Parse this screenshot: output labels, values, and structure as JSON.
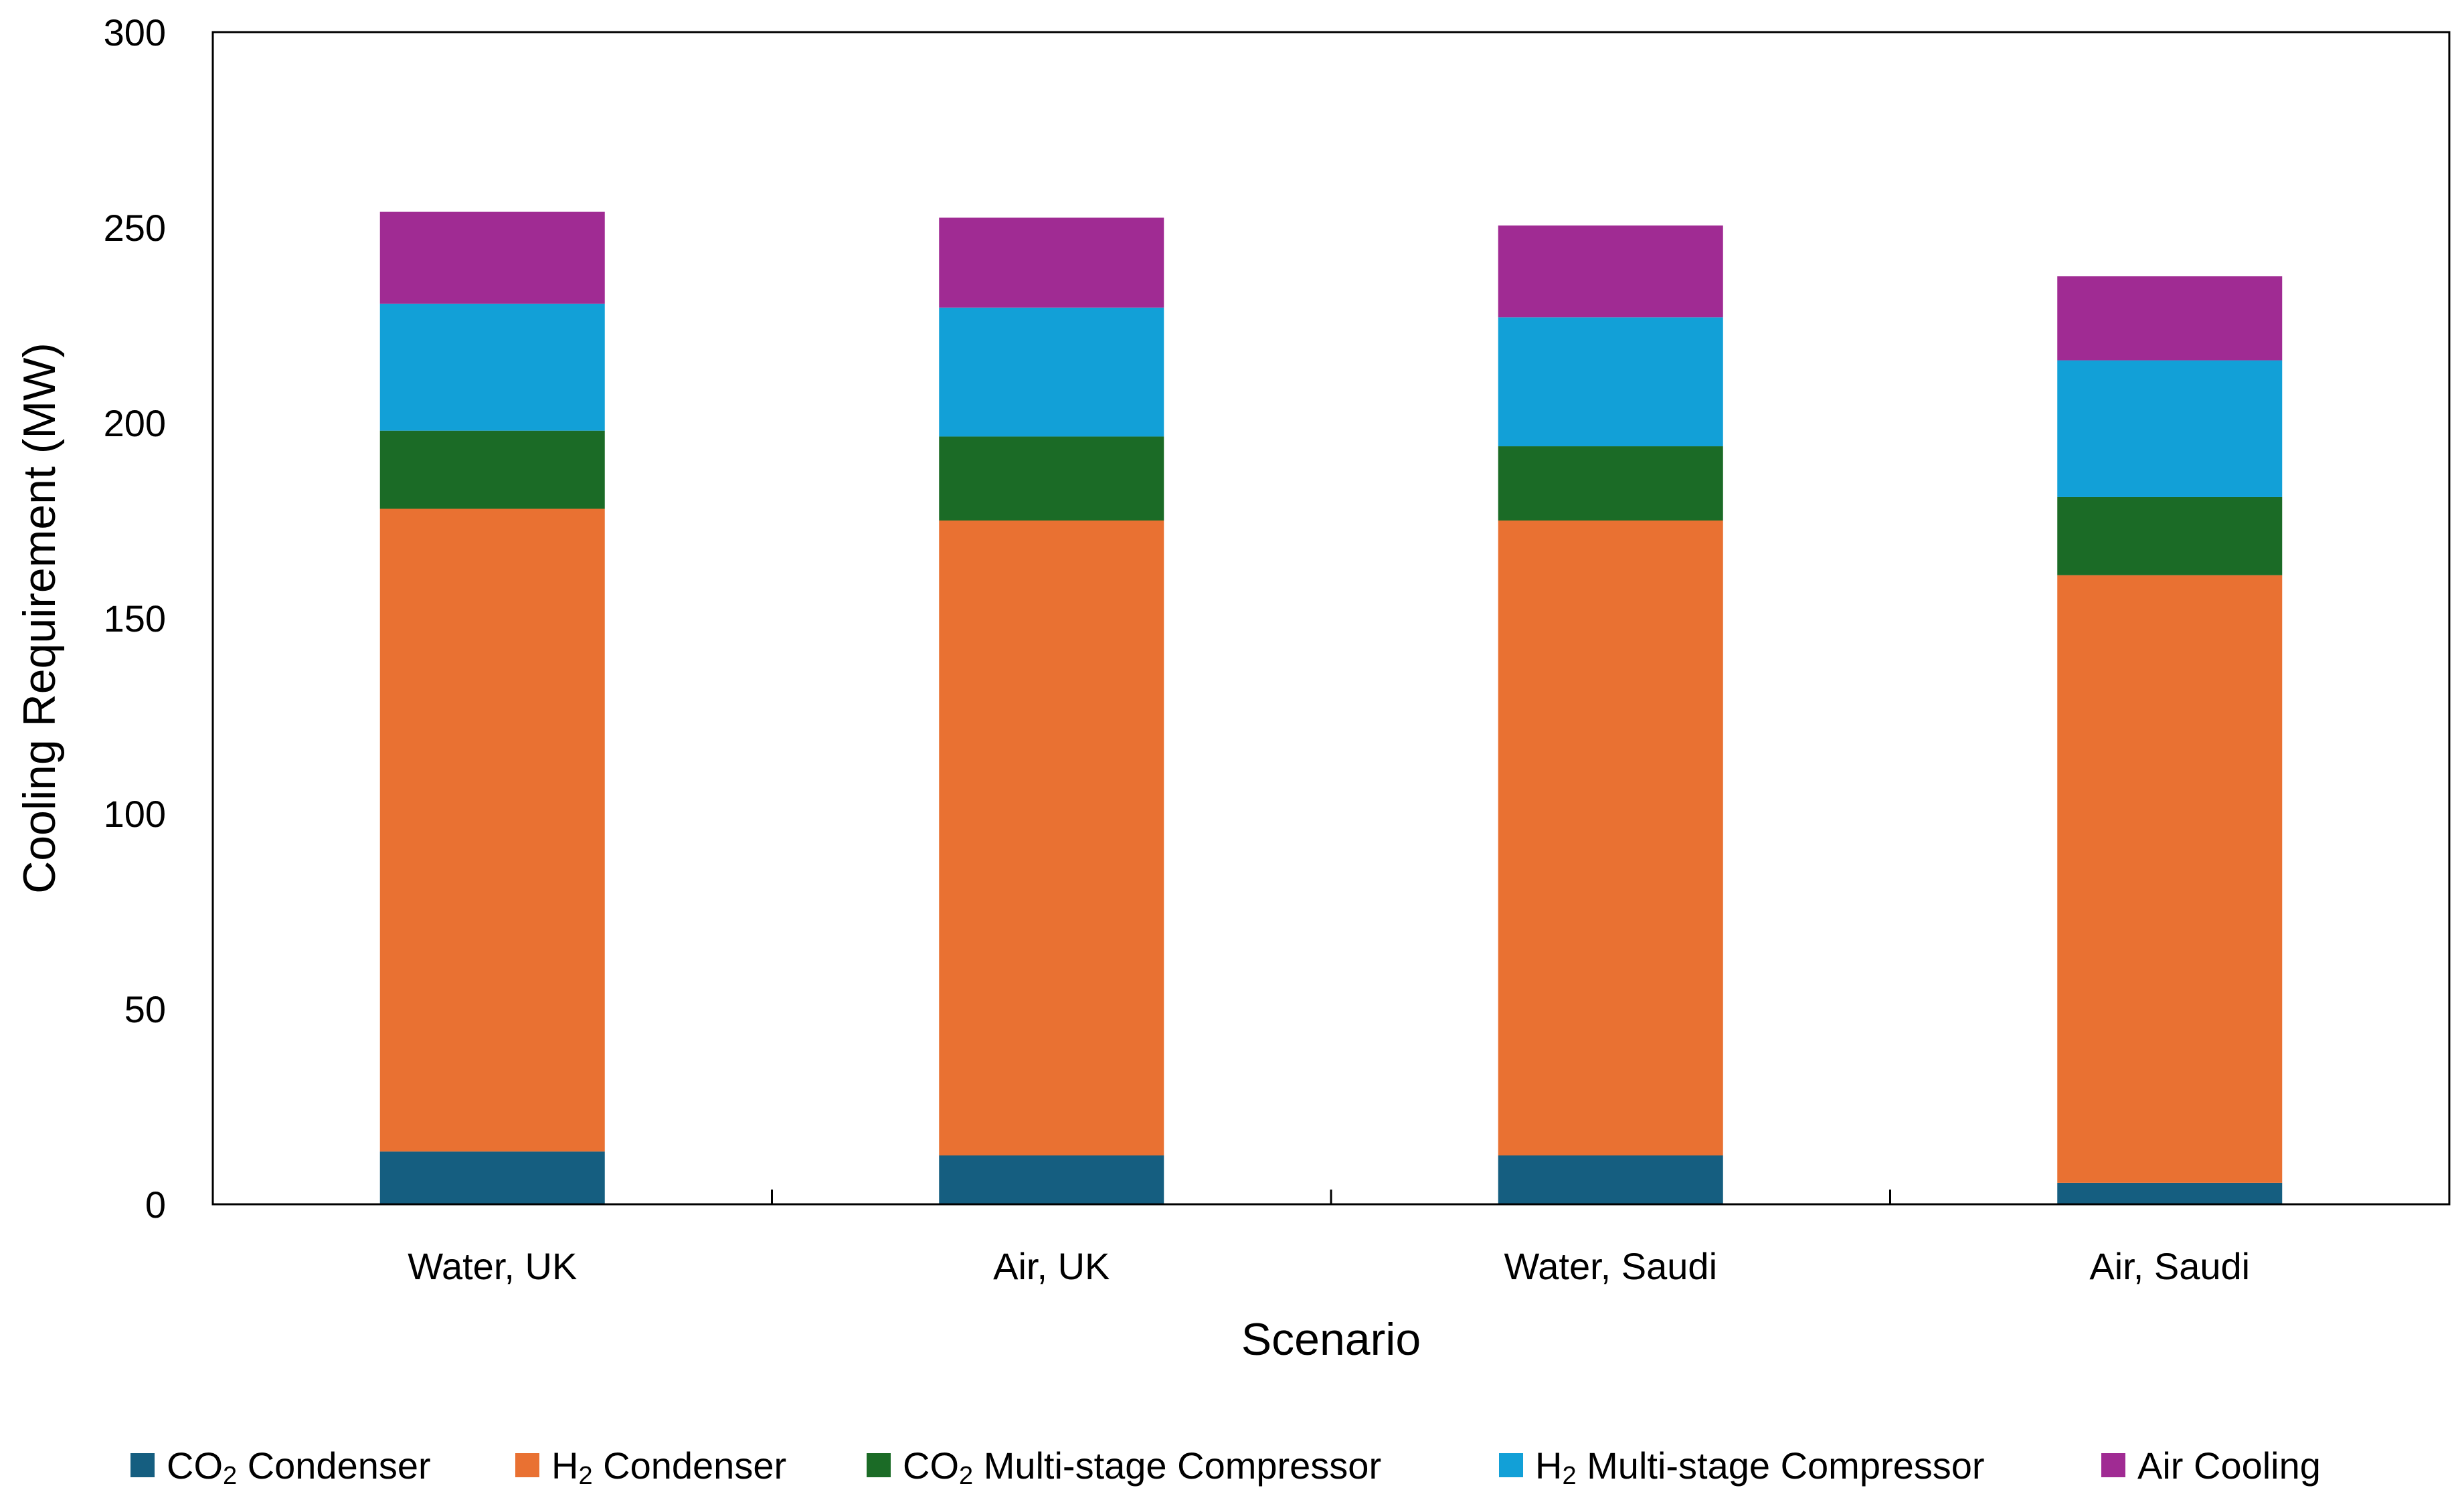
{
  "chart_data": {
    "type": "bar",
    "stacked": true,
    "xlabel": "Scenario",
    "ylabel": "Cooling Requirement (MW)",
    "ylim": [
      0,
      300
    ],
    "yticks": [
      0,
      50,
      100,
      150,
      200,
      250,
      300
    ],
    "grid": false,
    "legend_position": "bottom",
    "categories": [
      "Water, UK",
      "Air, UK",
      "Water, Saudi",
      "Air, Saudi"
    ],
    "series": [
      {
        "name": "CO2 Condenser",
        "name_parts": [
          "CO",
          "2",
          " Condenser"
        ],
        "color": "#155e80",
        "values": [
          13.5,
          12.5,
          12.5,
          5.5
        ]
      },
      {
        "name": "H2 Condenser",
        "name_parts": [
          "H",
          "2",
          " Condenser"
        ],
        "color": "#e97132",
        "values": [
          164.5,
          162.5,
          162.5,
          155.5
        ]
      },
      {
        "name": "CO2 Multi-stage Compressor",
        "name_parts": [
          "CO",
          "2",
          " Multi-stage Compressor"
        ],
        "color": "#1b6b26",
        "values": [
          20,
          21.5,
          19,
          20
        ]
      },
      {
        "name": "H2 Multi-stage Compressor",
        "name_parts": [
          "H",
          "2",
          " Multi-stage Compressor"
        ],
        "color": "#12a0d7",
        "values": [
          32.5,
          33,
          33,
          35
        ]
      },
      {
        "name": "Air Cooling",
        "name_parts": [
          "Air Cooling",
          "",
          ""
        ],
        "color": "#a02b93",
        "values": [
          23.5,
          23,
          23.5,
          21.5
        ]
      }
    ]
  }
}
